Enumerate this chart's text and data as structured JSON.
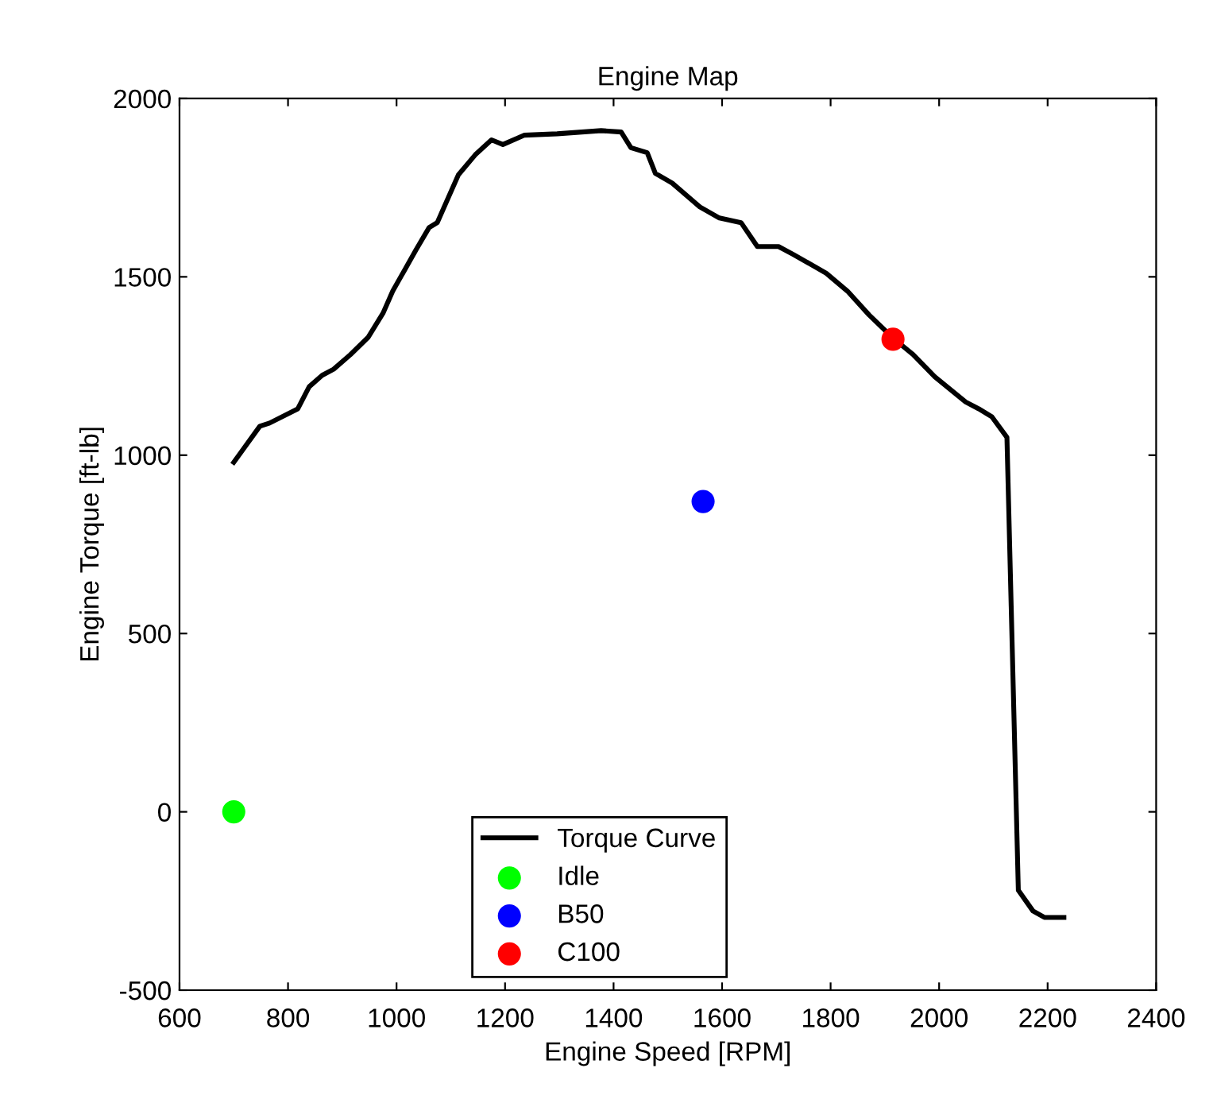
{
  "chart_data": {
    "type": "line",
    "title": "Engine Map",
    "xlabel": "Engine Speed [RPM]",
    "ylabel": "Engine Torque [ft-lb]",
    "xlim": [
      600,
      2400
    ],
    "xticks": [
      600,
      800,
      1000,
      1200,
      1400,
      1600,
      1800,
      2000,
      2200,
      2400
    ],
    "ylim": [
      -500,
      2000
    ],
    "yticks": [
      -500,
      0,
      500,
      1000,
      1500,
      2000
    ],
    "grid": false,
    "legend": "bottom",
    "series": [
      {
        "name": "Torque Curve",
        "color": "#000000",
        "marker": "none",
        "line_style": "solid",
        "x": [
          700,
          718,
          748,
          766,
          818,
          839,
          863,
          884,
          915,
          948,
          975,
          993,
          1036,
          1060,
          1075,
          1114,
          1145,
          1175,
          1196,
          1235,
          1296,
          1377,
          1414,
          1432,
          1462,
          1477,
          1508,
          1559,
          1595,
          1635,
          1665,
          1704,
          1731,
          1792,
          1831,
          1871,
          1916,
          1952,
          1992,
          2049,
          2073,
          2097,
          2125,
          2146,
          2173,
          2194,
          2230
        ],
        "values": [
          980,
          1018,
          1081,
          1090,
          1130,
          1192,
          1224,
          1241,
          1282,
          1331,
          1398,
          1460,
          1576,
          1638,
          1652,
          1786,
          1842,
          1884,
          1871,
          1897,
          1901,
          1910,
          1906,
          1862,
          1848,
          1790,
          1763,
          1696,
          1665,
          1652,
          1585,
          1585,
          1563,
          1510,
          1460,
          1393,
          1327,
          1282,
          1220,
          1149,
          1130,
          1108,
          1050,
          -220,
          -278,
          -296,
          -296
        ]
      },
      {
        "name": "Idle",
        "type": "scatter",
        "color": "#00ff00",
        "marker": "circle",
        "x": [
          700
        ],
        "values": [
          0
        ]
      },
      {
        "name": "B50",
        "type": "scatter",
        "color": "#0000ff",
        "marker": "circle",
        "x": [
          1565
        ],
        "values": [
          870
        ]
      },
      {
        "name": "C100",
        "type": "scatter",
        "color": "#ff0000",
        "marker": "circle",
        "x": [
          1915
        ],
        "values": [
          1325
        ]
      }
    ]
  }
}
